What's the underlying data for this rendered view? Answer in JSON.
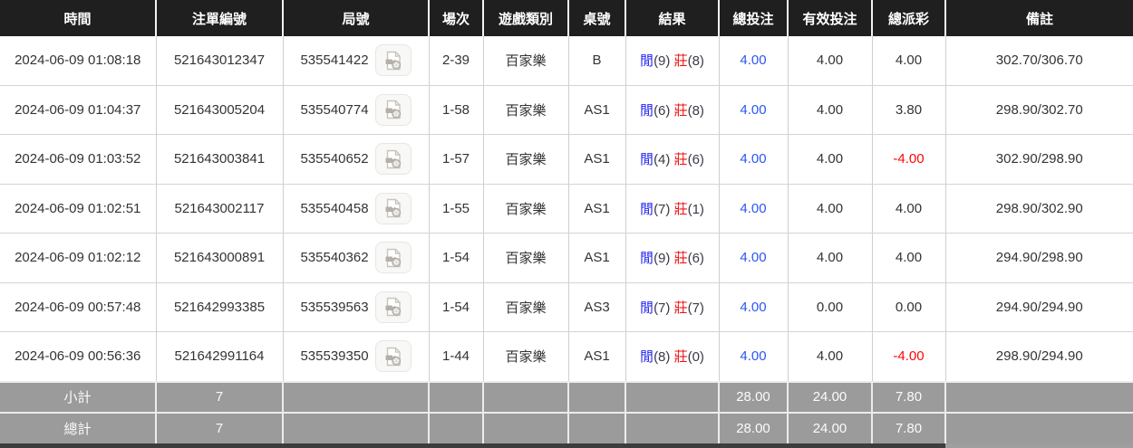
{
  "table": {
    "columns": [
      {
        "key": "time",
        "label": "時間"
      },
      {
        "key": "bet_id",
        "label": "注單編號"
      },
      {
        "key": "round_id",
        "label": "局號"
      },
      {
        "key": "session",
        "label": "場次"
      },
      {
        "key": "game_type",
        "label": "遊戲類別"
      },
      {
        "key": "table_no",
        "label": "桌號"
      },
      {
        "key": "result",
        "label": "結果"
      },
      {
        "key": "total_bet",
        "label": "總投注"
      },
      {
        "key": "valid_bet",
        "label": "有效投注"
      },
      {
        "key": "total_payout",
        "label": "總派彩"
      },
      {
        "key": "remark",
        "label": "備註"
      }
    ],
    "rows": [
      {
        "time": "2024-06-09 01:08:18",
        "bet_id": "521643012347",
        "round_id": "535541422",
        "session": "2-39",
        "game_type": "百家樂",
        "table_no": "B",
        "result": {
          "player_label": "閒",
          "player_value": "(9)",
          "banker_label": "莊",
          "banker_value": "(8)"
        },
        "total_bet": "4.00",
        "valid_bet": "4.00",
        "total_payout": "4.00",
        "payout_negative": false,
        "remark": "302.70/306.70"
      },
      {
        "time": "2024-06-09 01:04:37",
        "bet_id": "521643005204",
        "round_id": "535540774",
        "session": "1-58",
        "game_type": "百家樂",
        "table_no": "AS1",
        "result": {
          "player_label": "閒",
          "player_value": "(6)",
          "banker_label": "莊",
          "banker_value": "(8)"
        },
        "total_bet": "4.00",
        "valid_bet": "4.00",
        "total_payout": "3.80",
        "payout_negative": false,
        "remark": "298.90/302.70"
      },
      {
        "time": "2024-06-09 01:03:52",
        "bet_id": "521643003841",
        "round_id": "535540652",
        "session": "1-57",
        "game_type": "百家樂",
        "table_no": "AS1",
        "result": {
          "player_label": "閒",
          "player_value": "(4)",
          "banker_label": "莊",
          "banker_value": "(6)"
        },
        "total_bet": "4.00",
        "valid_bet": "4.00",
        "total_payout": "-4.00",
        "payout_negative": true,
        "remark": "302.90/298.90"
      },
      {
        "time": "2024-06-09 01:02:51",
        "bet_id": "521643002117",
        "round_id": "535540458",
        "session": "1-55",
        "game_type": "百家樂",
        "table_no": "AS1",
        "result": {
          "player_label": "閒",
          "player_value": "(7)",
          "banker_label": "莊",
          "banker_value": "(1)"
        },
        "total_bet": "4.00",
        "valid_bet": "4.00",
        "total_payout": "4.00",
        "payout_negative": false,
        "remark": "298.90/302.90"
      },
      {
        "time": "2024-06-09 01:02:12",
        "bet_id": "521643000891",
        "round_id": "535540362",
        "session": "1-54",
        "game_type": "百家樂",
        "table_no": "AS1",
        "result": {
          "player_label": "閒",
          "player_value": "(9)",
          "banker_label": "莊",
          "banker_value": "(6)"
        },
        "total_bet": "4.00",
        "valid_bet": "4.00",
        "total_payout": "4.00",
        "payout_negative": false,
        "remark": "294.90/298.90"
      },
      {
        "time": "2024-06-09 00:57:48",
        "bet_id": "521642993385",
        "round_id": "535539563",
        "session": "1-54",
        "game_type": "百家樂",
        "table_no": "AS3",
        "result": {
          "player_label": "閒",
          "player_value": "(7)",
          "banker_label": "莊",
          "banker_value": "(7)"
        },
        "total_bet": "4.00",
        "valid_bet": "0.00",
        "total_payout": "0.00",
        "payout_negative": false,
        "remark": "294.90/294.90"
      },
      {
        "time": "2024-06-09 00:56:36",
        "bet_id": "521642991164",
        "round_id": "535539350",
        "session": "1-44",
        "game_type": "百家樂",
        "table_no": "AS1",
        "result": {
          "player_label": "閒",
          "player_value": "(8)",
          "banker_label": "莊",
          "banker_value": "(0)"
        },
        "total_bet": "4.00",
        "valid_bet": "4.00",
        "total_payout": "-4.00",
        "payout_negative": true,
        "remark": "298.90/294.90"
      }
    ],
    "footer": {
      "subtotal": {
        "label": "小計",
        "count": "7",
        "total_bet": "28.00",
        "valid_bet": "24.00",
        "total_payout": "7.80"
      },
      "total": {
        "label": "總計",
        "count": "7",
        "total_bet": "28.00",
        "valid_bet": "24.00",
        "total_payout": "7.80"
      }
    },
    "icons": {
      "round_video": "video-file-icon"
    }
  },
  "colors": {
    "header_bg": "#1f1f1f",
    "footer_bg": "#9b9b9b",
    "bet_amount_blue": "#2b55f3",
    "player_blue": "#2323f1",
    "banker_red": "#ee1111",
    "negative_red": "#fb0606",
    "scrollbar_thumb": "#3d3d3d"
  }
}
